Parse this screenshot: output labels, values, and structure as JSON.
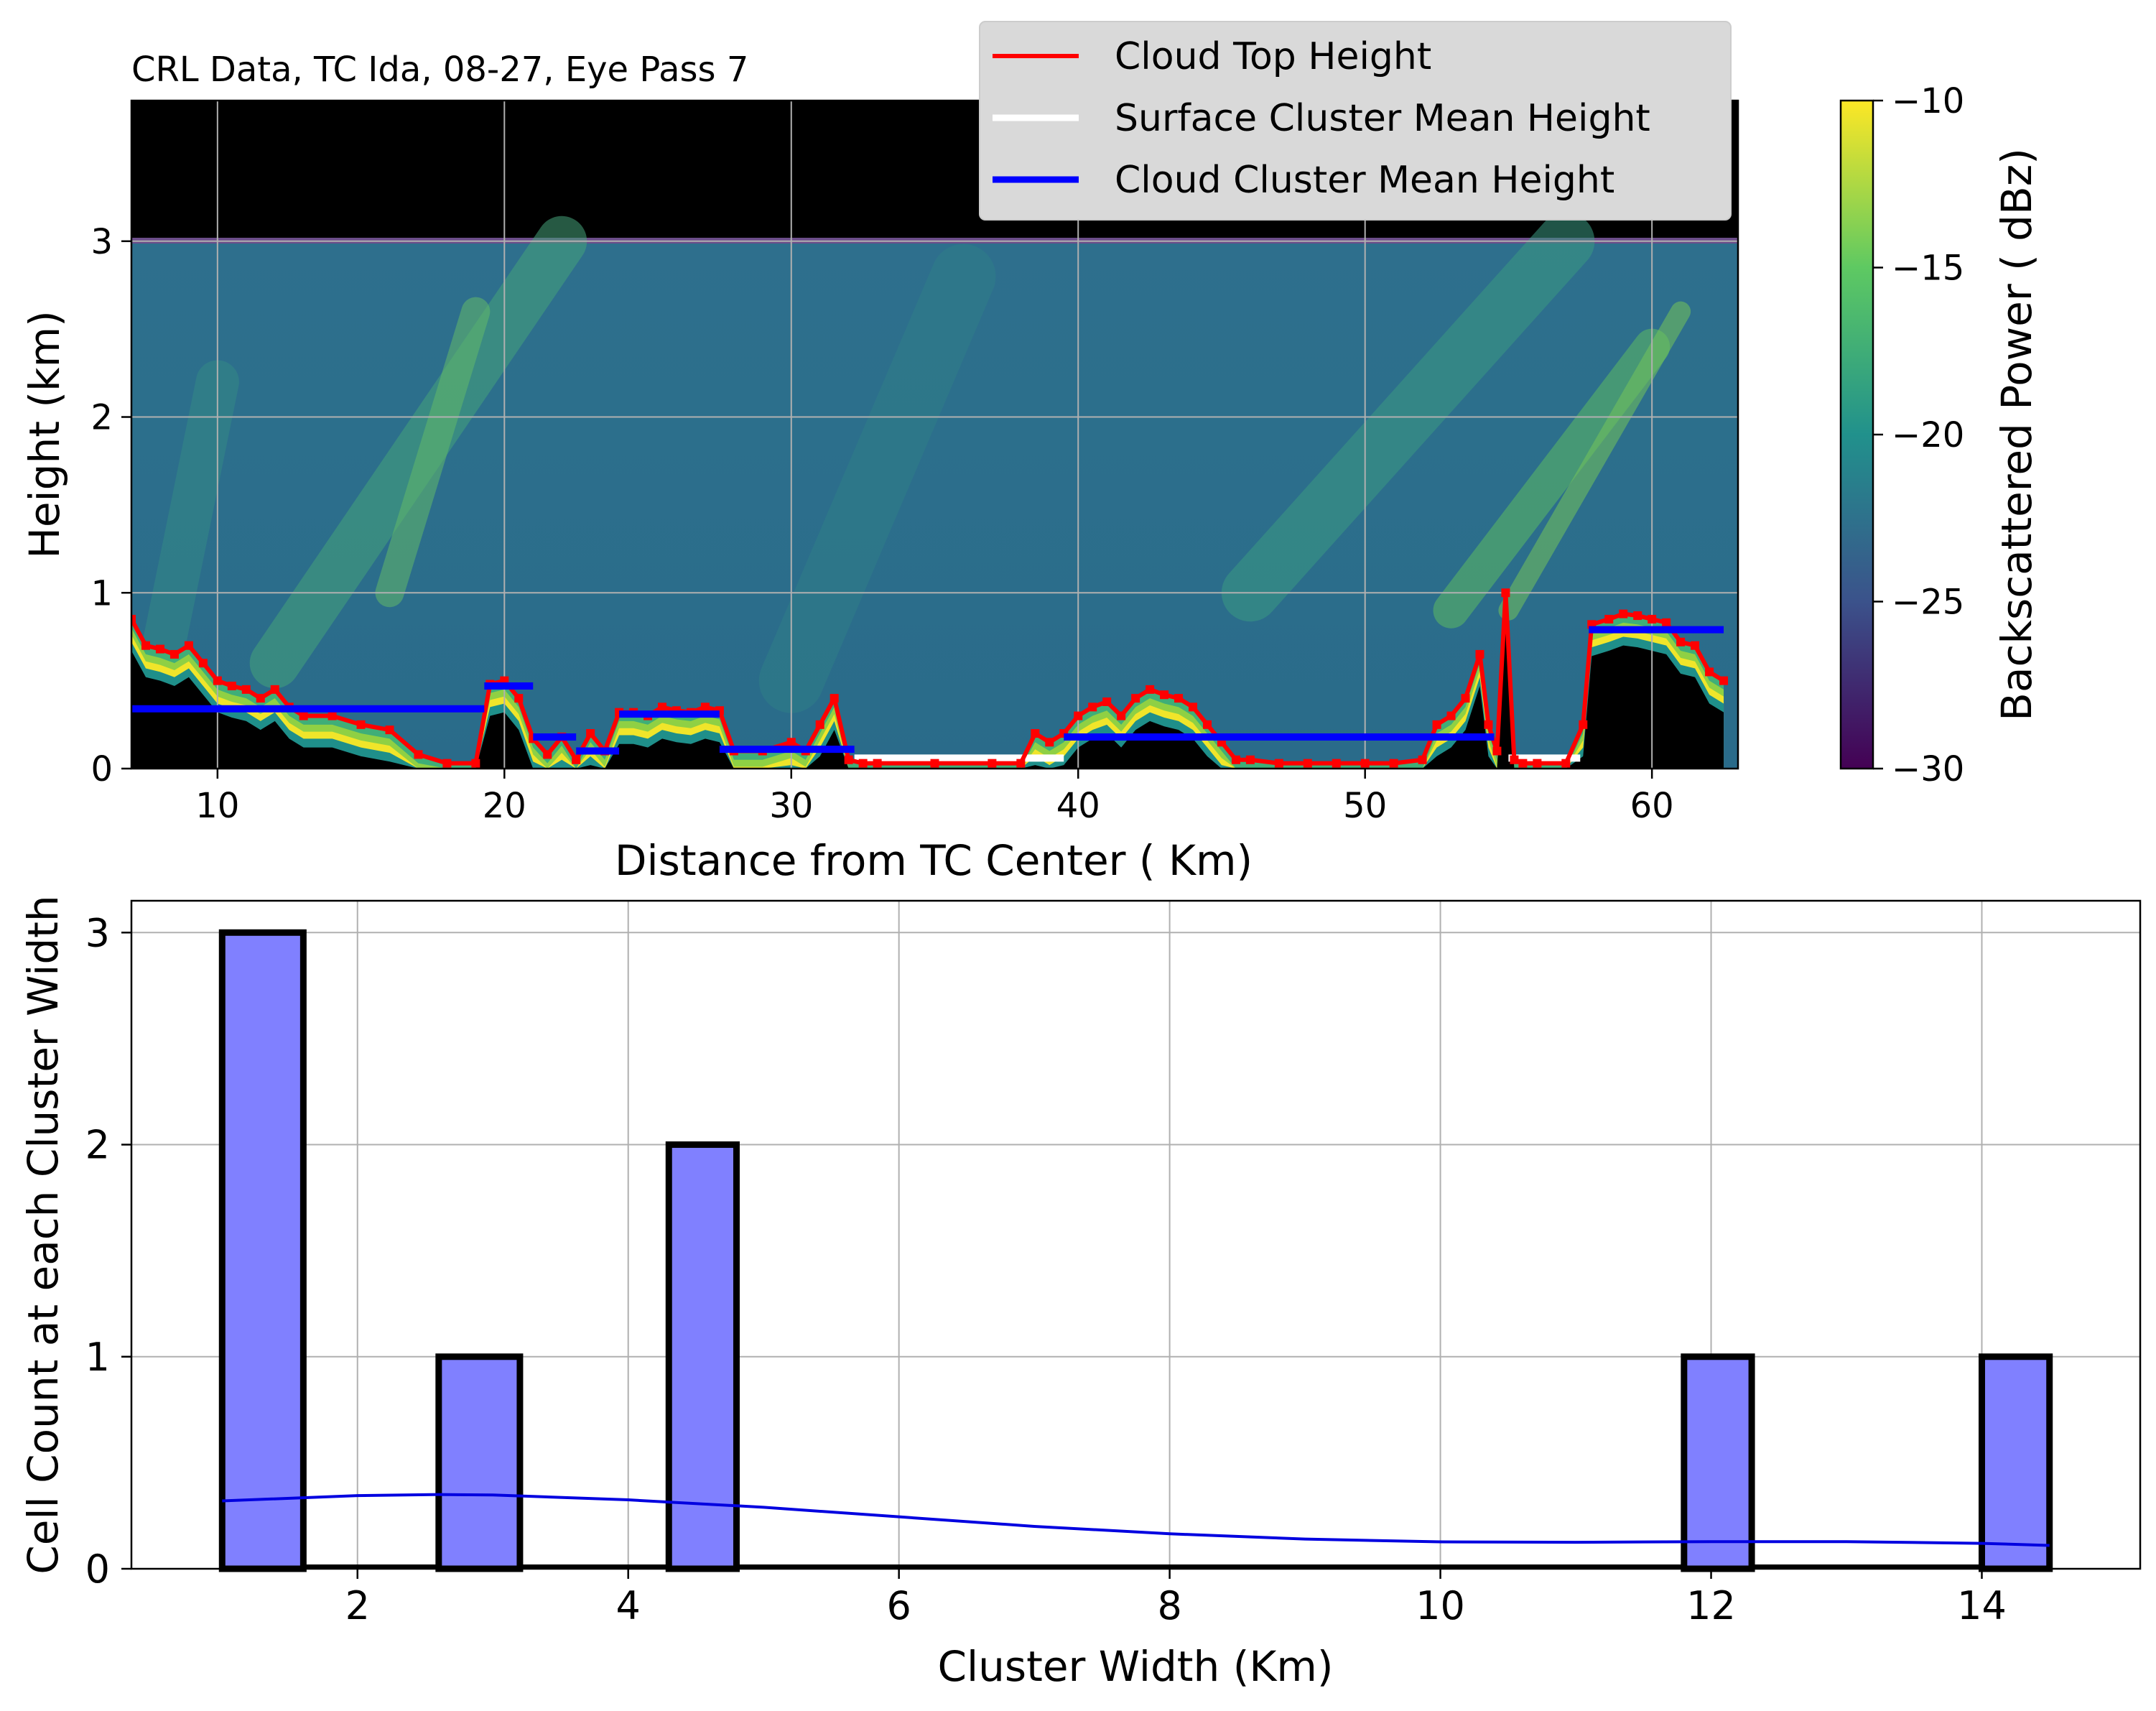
{
  "top_panel": {
    "title": "CRL Data, TC Ida, 08-27, Eye Pass 7",
    "xlabel": "Distance from TC Center ( Km)",
    "ylabel": "Height (km)",
    "xlim": [
      7,
      63
    ],
    "ylim": [
      0,
      3.8
    ],
    "xticks": [
      10,
      20,
      30,
      40,
      50,
      60
    ],
    "yticks": [
      0,
      1,
      2,
      3
    ],
    "legend": {
      "cloud_top": "Cloud Top Height",
      "surface_mean": "Surface Cluster Mean Height",
      "cloud_mean": "Cloud Cluster Mean Height"
    },
    "colorbar": {
      "label": "Backscattered Power ( dBz)",
      "range": [
        -30,
        -10
      ],
      "ticks": [
        "−10",
        "−15",
        "−20",
        "−25",
        "−30"
      ],
      "colors": [
        "#440154",
        "#3b528b",
        "#21918c",
        "#5ec962",
        "#fde725"
      ]
    },
    "colors": {
      "background_field": "#2c6d8b",
      "cloud_top": "#ff0000",
      "cloud_mean": "#0000ff",
      "surface_mean": "#ffffff"
    }
  },
  "chart_data": [
    {
      "type": "line",
      "title": "CRL Data, TC Ida, 08-27, Eye Pass 7",
      "xlabel": "Distance from TC Center ( Km)",
      "ylabel": "Height (km)",
      "series": [
        {
          "name": "Cloud Top Height",
          "x": [
            7.0,
            7.5,
            8.0,
            8.5,
            9.0,
            9.5,
            10.0,
            10.5,
            11.0,
            11.5,
            12.0,
            12.5,
            13.0,
            14.0,
            15.0,
            16.0,
            17.0,
            18.0,
            19.0,
            19.5,
            20.0,
            20.5,
            21.0,
            21.5,
            22.0,
            22.5,
            23.0,
            23.5,
            24.0,
            24.5,
            25.0,
            25.5,
            26.0,
            26.5,
            27.0,
            27.5,
            28.0,
            29.0,
            30.0,
            30.5,
            31.0,
            31.5,
            32.0,
            32.5,
            33.0,
            35.0,
            37.0,
            38.0,
            38.5,
            39.0,
            39.5,
            40.0,
            40.5,
            41.0,
            41.5,
            42.0,
            42.5,
            43.0,
            43.5,
            44.0,
            44.5,
            45.0,
            45.5,
            46.0,
            47.0,
            48.0,
            49.0,
            50.0,
            51.0,
            52.0,
            52.5,
            53.0,
            53.5,
            54.0,
            54.3,
            54.6,
            54.9,
            55.2,
            55.5,
            56.0,
            57.0,
            57.6,
            57.9,
            58.5,
            59.0,
            59.5,
            60.0,
            60.5,
            61.0,
            61.5,
            62.0,
            62.5
          ],
          "y": [
            0.85,
            0.7,
            0.68,
            0.65,
            0.7,
            0.6,
            0.5,
            0.47,
            0.45,
            0.4,
            0.45,
            0.35,
            0.3,
            0.3,
            0.25,
            0.22,
            0.08,
            0.03,
            0.03,
            0.48,
            0.5,
            0.4,
            0.17,
            0.08,
            0.18,
            0.05,
            0.2,
            0.1,
            0.32,
            0.32,
            0.3,
            0.35,
            0.33,
            0.32,
            0.35,
            0.33,
            0.1,
            0.1,
            0.15,
            0.1,
            0.25,
            0.4,
            0.05,
            0.03,
            0.03,
            0.03,
            0.03,
            0.03,
            0.2,
            0.15,
            0.2,
            0.3,
            0.35,
            0.38,
            0.3,
            0.4,
            0.45,
            0.42,
            0.4,
            0.35,
            0.25,
            0.15,
            0.05,
            0.05,
            0.03,
            0.03,
            0.03,
            0.03,
            0.03,
            0.05,
            0.25,
            0.3,
            0.4,
            0.65,
            0.25,
            0.1,
            1.0,
            0.05,
            0.03,
            0.03,
            0.03,
            0.25,
            0.82,
            0.85,
            0.88,
            0.87,
            0.85,
            0.83,
            0.72,
            0.7,
            0.55,
            0.5
          ]
        },
        {
          "name": "Surface Cluster Mean Height",
          "segments": [
            [
              32.2,
              39.5,
              0.06
            ],
            [
              55.0,
              57.5,
              0.06
            ]
          ]
        },
        {
          "name": "Cloud Cluster Mean Height",
          "segments": [
            [
              7.0,
              19.3,
              0.34
            ],
            [
              19.3,
              21.0,
              0.47
            ],
            [
              21.0,
              22.5,
              0.18
            ],
            [
              22.5,
              24.0,
              0.1
            ],
            [
              24.0,
              27.5,
              0.31
            ],
            [
              27.5,
              32.2,
              0.11
            ],
            [
              39.5,
              54.5,
              0.18
            ],
            [
              57.8,
              62.5,
              0.79
            ]
          ]
        }
      ],
      "xlim": [
        7,
        63
      ],
      "ylim": [
        0,
        3.8
      ],
      "grid": true,
      "legend_position": "top-right"
    },
    {
      "type": "bar",
      "xlabel": "Cluster Width (Km)",
      "ylabel": "Cell Count at each Cluster Width",
      "bins": [
        [
          1.0,
          1.6
        ],
        [
          2.6,
          3.2
        ],
        [
          4.3,
          4.8
        ],
        [
          11.8,
          12.3
        ],
        [
          14.0,
          14.5
        ]
      ],
      "values": [
        3,
        1,
        2,
        1,
        1
      ],
      "kde": {
        "x": [
          1.0,
          2.0,
          2.6,
          3.0,
          4.0,
          5.0,
          6.0,
          7.0,
          8.0,
          9.0,
          10.0,
          11.0,
          12.0,
          13.0,
          14.0,
          14.5
        ],
        "y": [
          0.32,
          0.345,
          0.35,
          0.348,
          0.325,
          0.29,
          0.245,
          0.2,
          0.165,
          0.14,
          0.127,
          0.125,
          0.128,
          0.128,
          0.12,
          0.11
        ]
      },
      "xlim": [
        0.33,
        15.17
      ],
      "ylim": [
        0,
        3.15
      ],
      "xticks": [
        2,
        4,
        6,
        8,
        10,
        12,
        14
      ],
      "yticks": [
        0,
        1,
        2,
        3
      ],
      "grid": true,
      "colors": {
        "bar_fill": "#8080ff",
        "bar_edge": "#000000",
        "kde": "#0000e0"
      }
    }
  ]
}
